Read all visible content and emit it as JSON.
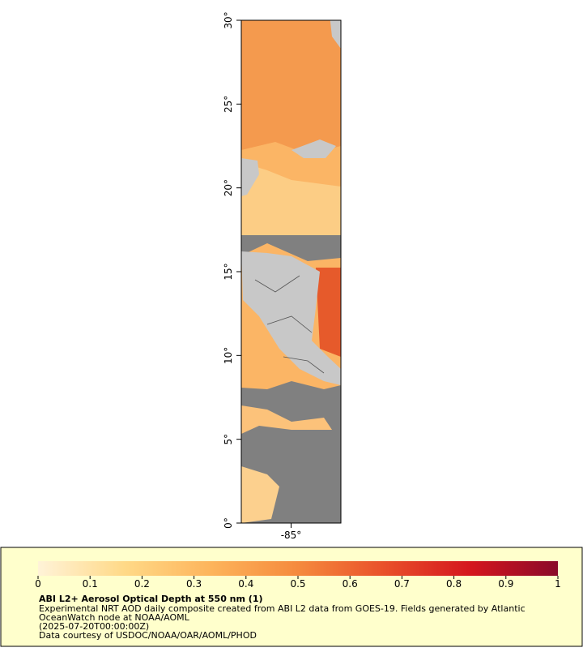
{
  "chart_data": {
    "type": "map",
    "xlim": [
      -88,
      -82
    ],
    "ylim": [
      0,
      30
    ],
    "xticks": [
      {
        "value": -85,
        "label": "-85°"
      }
    ],
    "yticks": [
      {
        "value": 0,
        "label": "0°"
      },
      {
        "value": 5,
        "label": "5°"
      },
      {
        "value": 10,
        "label": "10°"
      },
      {
        "value": 15,
        "label": "15°"
      },
      {
        "value": 20,
        "label": "20°"
      },
      {
        "value": 25,
        "label": "25°"
      },
      {
        "value": 30,
        "label": "30°"
      }
    ],
    "colorbar": {
      "lim": [
        0,
        1
      ],
      "ticks": [
        0,
        0.1,
        0.2,
        0.3,
        0.4,
        0.5,
        0.6,
        0.7,
        0.8,
        0.9,
        1
      ],
      "colors": [
        "#fff3d8",
        "#ffd987",
        "#fdb45b",
        "#f58a3d",
        "#e9502a",
        "#d4161e",
        "#8a0a2a"
      ]
    },
    "legend": {
      "title": "ABI L2+ Aerosol Optical Depth at 550 nm (1)",
      "lines": [
        "Experimental NRT AOD daily composite created from ABI L2 data from GOES-19. Fields generated by Atlantic",
        "OceanWatch node at NOAA/AOML",
        "(2025-07-20T00:00:00Z)",
        "Data courtesy of USDOC/NOAA/OAR/AOML/PHOD"
      ]
    }
  }
}
